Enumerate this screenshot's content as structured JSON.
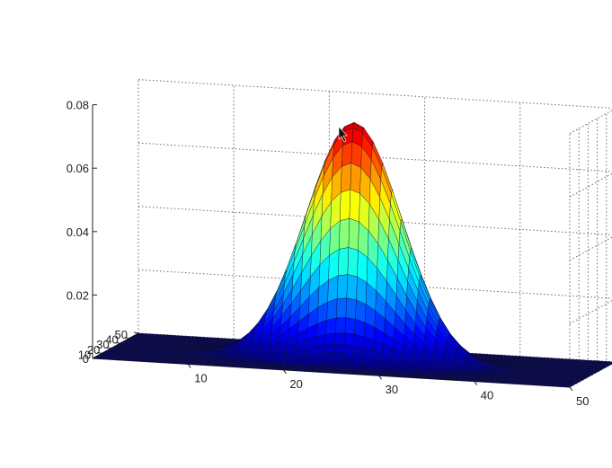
{
  "chart_data": {
    "type": "surface",
    "title": "",
    "xlabel": "",
    "ylabel": "",
    "zlabel": "",
    "x_range": [
      0,
      50
    ],
    "y_range": [
      0,
      50
    ],
    "zlim": [
      0,
      0.08
    ],
    "x_ticks": [
      "10",
      "20",
      "30",
      "40",
      "50"
    ],
    "y_ticks": [
      "10",
      "20",
      "30",
      "40",
      "50"
    ],
    "z_ticks": [
      "0",
      "0.02",
      "0.04",
      "0.06",
      "0.08"
    ],
    "grid": true,
    "colormap": "jet",
    "surface": {
      "function": "gaussian",
      "center_x": 25,
      "center_y": 25,
      "sigma": 5,
      "peak": 0.075,
      "grid_points": 50
    },
    "colors": {
      "background": "#ffffff",
      "mesh_edge": "#0b0b2a",
      "jet_low": "#00008f",
      "jet_high": "#800000"
    }
  }
}
